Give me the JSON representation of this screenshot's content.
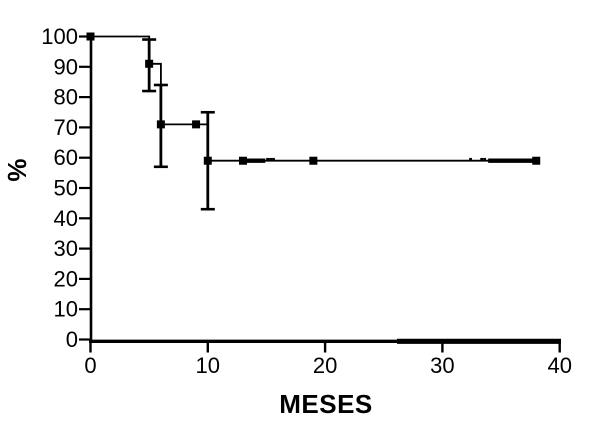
{
  "chart_data": {
    "type": "line",
    "subtype": "kaplan-meier-step-curve",
    "title": "",
    "xlabel": "MESES",
    "ylabel": "%",
    "xlim": [
      0,
      40
    ],
    "ylim": [
      0,
      100
    ],
    "x_ticks": [
      0,
      10,
      20,
      30,
      40
    ],
    "y_ticks": [
      0,
      10,
      20,
      30,
      40,
      50,
      60,
      70,
      80,
      90,
      100
    ],
    "grid": false,
    "legend": false,
    "line_color": "#000000",
    "background_color": "#ffffff",
    "series": [
      {
        "name": "survival-percent",
        "step": "post",
        "points": [
          [
            0,
            100
          ],
          [
            5,
            91
          ],
          [
            6,
            71
          ],
          [
            10,
            59
          ],
          [
            38,
            59
          ]
        ],
        "markers": [
          [
            0,
            100
          ],
          [
            5,
            91
          ],
          [
            6,
            71
          ],
          [
            9,
            71
          ],
          [
            10,
            59
          ],
          [
            13,
            59
          ],
          [
            19,
            59
          ],
          [
            38,
            59
          ]
        ],
        "error_bars": [
          {
            "x": 5,
            "center": 91,
            "low": 82,
            "high": 99
          },
          {
            "x": 6,
            "center": 71,
            "low": 57,
            "high": 84
          },
          {
            "x": 10,
            "center": 59,
            "low": 43,
            "high": 75
          }
        ],
        "thick_segments_at_y59": [
          [
            13.2,
            14.9
          ],
          [
            33.9,
            38
          ]
        ],
        "censor_dots": [
          [
            15.1,
            59
          ],
          [
            15.35,
            59
          ],
          [
            15.6,
            59
          ],
          [
            32.4,
            59
          ],
          [
            33.35,
            59
          ],
          [
            33.6,
            59
          ]
        ]
      }
    ]
  }
}
